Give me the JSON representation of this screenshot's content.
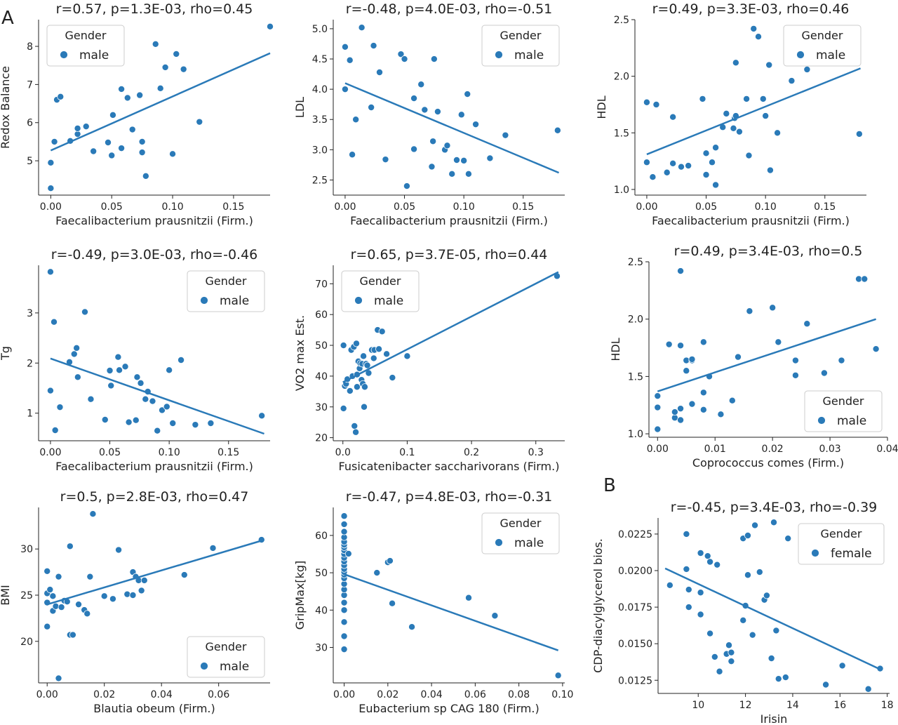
{
  "panel_labels": [
    "A",
    "B"
  ],
  "legend_title": "Gender",
  "chart_data": [
    {
      "type": "scatter",
      "title": "r=0.57, p=1.3E-03, rho=0.45",
      "xlabel": "Faecalibacterium prausnitzii (Firm.)",
      "ylabel": "Redox Balance",
      "xlim": [
        -0.01,
        0.18
      ],
      "ylim": [
        4.1,
        8.7
      ],
      "xticks": [
        "0.00",
        "0.05",
        "0.10",
        "0.15"
      ],
      "yticks": [
        "5",
        "6",
        "7",
        "8"
      ],
      "legend": "top-left",
      "legend_entry": "male",
      "fit": [
        [
          0.0,
          5.27
        ],
        [
          0.18,
          7.82
        ]
      ],
      "x": [
        0.0,
        0.0,
        0.003,
        0.005,
        0.008,
        0.016,
        0.022,
        0.022,
        0.029,
        0.035,
        0.047,
        0.051,
        0.05,
        0.058,
        0.058,
        0.063,
        0.067,
        0.073,
        0.075,
        0.075,
        0.078,
        0.086,
        0.09,
        0.094,
        0.1,
        0.103,
        0.109,
        0.122,
        0.18
      ],
      "y": [
        4.28,
        4.95,
        5.5,
        6.6,
        6.68,
        5.52,
        5.7,
        5.85,
        5.9,
        5.25,
        5.48,
        6.2,
        5.14,
        5.33,
        6.88,
        6.65,
        5.82,
        6.72,
        5.5,
        5.22,
        4.6,
        8.06,
        6.9,
        7.45,
        5.18,
        7.8,
        7.4,
        6.02,
        8.52
      ]
    },
    {
      "type": "scatter",
      "title": "r=-0.48, p=4.0E-03, rho=-0.51",
      "xlabel": "Faecalibacterium prausnitzii (Firm.)",
      "ylabel": "LDL",
      "xlim": [
        -0.01,
        0.185
      ],
      "ylim": [
        2.25,
        5.15
      ],
      "xticks": [
        "0.00",
        "0.05",
        "0.10",
        "0.15"
      ],
      "yticks": [
        "2.5",
        "3.0",
        "3.5",
        "4.0",
        "4.5",
        "5.0"
      ],
      "legend": "top-right",
      "legend_entry": "male",
      "fit": [
        [
          0.0,
          4.1
        ],
        [
          0.18,
          2.62
        ]
      ],
      "x": [
        0.0,
        0.0,
        0.004,
        0.006,
        0.009,
        0.014,
        0.022,
        0.024,
        0.029,
        0.034,
        0.047,
        0.05,
        0.052,
        0.058,
        0.058,
        0.064,
        0.067,
        0.073,
        0.074,
        0.075,
        0.078,
        0.084,
        0.086,
        0.09,
        0.094,
        0.098,
        0.1,
        0.103,
        0.104,
        0.11,
        0.122,
        0.135,
        0.179
      ],
      "y": [
        4.7,
        4.0,
        4.48,
        2.92,
        3.5,
        5.02,
        3.7,
        4.72,
        4.28,
        2.84,
        4.58,
        4.5,
        2.4,
        3.01,
        3.85,
        4.08,
        3.66,
        2.72,
        3.14,
        4.5,
        3.63,
        3.0,
        3.07,
        2.6,
        2.83,
        3.58,
        2.82,
        3.92,
        2.6,
        3.42,
        2.86,
        3.24,
        3.32
      ]
    },
    {
      "type": "scatter",
      "title": "r=0.49, p=3.3E-03, rho=0.46",
      "xlabel": "Faecalibacterium prausnitzii (Firm.)",
      "ylabel": "HDL",
      "xlim": [
        -0.01,
        0.185
      ],
      "ylim": [
        0.95,
        2.5
      ],
      "xticks": [
        "0.00",
        "0.05",
        "0.10",
        "0.15"
      ],
      "yticks": [
        "1.0",
        "1.5",
        "2.0",
        "2.5"
      ],
      "legend": "top-right",
      "legend_entry": "male",
      "fit": [
        [
          0.0,
          1.31
        ],
        [
          0.18,
          2.07
        ]
      ],
      "x": [
        0.0,
        0.0,
        0.005,
        0.008,
        0.017,
        0.022,
        0.022,
        0.022,
        0.029,
        0.035,
        0.047,
        0.05,
        0.05,
        0.055,
        0.058,
        0.058,
        0.064,
        0.067,
        0.073,
        0.074,
        0.075,
        0.075,
        0.078,
        0.084,
        0.086,
        0.09,
        0.094,
        0.098,
        0.1,
        0.103,
        0.104,
        0.11,
        0.122,
        0.135,
        0.179
      ],
      "y": [
        1.24,
        1.77,
        1.11,
        1.75,
        1.15,
        1.64,
        1.64,
        1.23,
        1.2,
        1.21,
        1.8,
        1.32,
        1.13,
        1.24,
        1.04,
        1.37,
        1.55,
        1.67,
        1.54,
        1.63,
        1.65,
        2.12,
        1.51,
        1.8,
        1.3,
        2.42,
        2.35,
        1.8,
        1.65,
        2.1,
        1.17,
        1.5,
        1.96,
        2.06,
        1.49
      ]
    },
    {
      "type": "scatter",
      "title": "r=-0.49, p=3.0E-03, rho=-0.46",
      "xlabel": "Faecalibacterium prausnitzii (Firm.)",
      "ylabel": "Tg",
      "xlim": [
        -0.01,
        0.185
      ],
      "ylim": [
        0.45,
        3.95
      ],
      "xticks": [
        "0.00",
        "0.05",
        "0.10",
        "0.15"
      ],
      "yticks": [
        "1",
        "2",
        "3"
      ],
      "legend": "top-right",
      "legend_entry": "male",
      "fit": [
        [
          0.0,
          2.09
        ],
        [
          0.18,
          0.59
        ]
      ],
      "x": [
        0.0,
        0.0,
        0.003,
        0.004,
        0.008,
        0.016,
        0.02,
        0.022,
        0.023,
        0.029,
        0.034,
        0.046,
        0.05,
        0.051,
        0.057,
        0.058,
        0.063,
        0.066,
        0.072,
        0.073,
        0.076,
        0.08,
        0.082,
        0.086,
        0.09,
        0.094,
        0.098,
        0.1,
        0.103,
        0.11,
        0.122,
        0.135,
        0.178
      ],
      "y": [
        3.82,
        1.45,
        2.82,
        0.66,
        1.12,
        2.02,
        2.18,
        2.3,
        1.72,
        3.02,
        1.28,
        0.87,
        1.85,
        1.55,
        2.12,
        1.86,
        1.93,
        0.82,
        0.86,
        1.72,
        1.6,
        1.28,
        1.43,
        1.24,
        0.65,
        1.06,
        1.13,
        1.86,
        0.8,
        2.06,
        0.77,
        0.8,
        0.95
      ]
    },
    {
      "type": "scatter",
      "title": "r=0.65, p=3.7E-05, rho=0.44",
      "xlabel": "Fusicatenibacter saccharivorans (Firm.)",
      "ylabel": "VO2 max Est.",
      "xlim": [
        -0.015,
        0.345
      ],
      "ylim": [
        19,
        76
      ],
      "xticks": [
        "0.0",
        "0.1",
        "0.2",
        "0.3"
      ],
      "yticks": [
        "20",
        "30",
        "40",
        "50",
        "60",
        "70"
      ],
      "legend": "top-left",
      "legend_entry": "male",
      "fit": [
        [
          0.0,
          38.0
        ],
        [
          0.335,
          73.8
        ]
      ],
      "x": [
        0.001,
        0.001,
        0.003,
        0.005,
        0.007,
        0.011,
        0.013,
        0.015,
        0.015,
        0.017,
        0.018,
        0.02,
        0.021,
        0.022,
        0.022,
        0.024,
        0.026,
        0.027,
        0.029,
        0.03,
        0.031,
        0.032,
        0.033,
        0.034,
        0.036,
        0.038,
        0.04,
        0.045,
        0.048,
        0.049,
        0.054,
        0.056,
        0.061,
        0.068,
        0.077,
        0.1,
        0.333
      ],
      "y": [
        29.5,
        50.0,
        36.8,
        37.5,
        39.0,
        35.2,
        48.5,
        40.0,
        40.0,
        49.5,
        23.8,
        21.8,
        50.6,
        40.5,
        36.5,
        44.8,
        42.5,
        44.2,
        38.8,
        44.0,
        37.5,
        46.5,
        30.0,
        36.5,
        44.0,
        43.5,
        41.0,
        48.5,
        45.8,
        48.5,
        55.0,
        48.8,
        54.5,
        47.2,
        39.5,
        46.5,
        72.5
      ]
    },
    {
      "type": "scatter",
      "title": "r=0.49, p=3.4E-03, rho=0.5",
      "xlabel": "Coprococcus comes (Firm.)",
      "ylabel": "HDL",
      "xlim": [
        -0.0015,
        0.04
      ],
      "ylim": [
        0.97,
        2.5
      ],
      "xticks": [
        "0.00",
        "0.01",
        "0.02",
        "0.03",
        "0.04"
      ],
      "yticks": [
        "1.0",
        "1.5",
        "2.0",
        "2.5"
      ],
      "legend": "bottom-right",
      "legend_entry": "male",
      "fit": [
        [
          0.0,
          1.37
        ],
        [
          0.038,
          2.0
        ]
      ],
      "x": [
        0.0,
        0.0,
        0.0,
        0.0,
        0.002,
        0.003,
        0.003,
        0.004,
        0.004,
        0.004,
        0.004,
        0.005,
        0.005,
        0.006,
        0.006,
        0.006,
        0.008,
        0.008,
        0.008,
        0.009,
        0.009,
        0.011,
        0.013,
        0.014,
        0.016,
        0.02,
        0.021,
        0.024,
        0.024,
        0.026,
        0.029,
        0.032,
        0.035,
        0.036,
        0.038
      ],
      "y": [
        1.04,
        1.23,
        1.33,
        1.33,
        1.78,
        1.14,
        1.19,
        1.12,
        1.22,
        1.77,
        2.42,
        1.64,
        1.55,
        1.64,
        1.65,
        1.26,
        1.8,
        1.36,
        1.21,
        1.5,
        1.5,
        1.17,
        1.29,
        1.67,
        2.07,
        2.1,
        1.8,
        1.51,
        1.64,
        1.96,
        1.53,
        1.64,
        2.35,
        2.35,
        1.74
      ]
    },
    {
      "type": "scatter",
      "title": "r=0.5, p=2.8E-03, rho=0.47",
      "xlabel": "Blautia obeum (Firm.)",
      "ylabel": "BMI",
      "xlim": [
        -0.003,
        0.078
      ],
      "ylim": [
        15.5,
        34.5
      ],
      "xticks": [
        "0.00",
        "0.02",
        "0.04",
        "0.06"
      ],
      "yticks": [
        "20",
        "25",
        "30"
      ],
      "legend": "bottom-right",
      "legend_entry": "male",
      "fit": [
        [
          0.0,
          24.0
        ],
        [
          0.075,
          30.9
        ]
      ],
      "x": [
        0.0,
        0.0,
        0.0,
        0.0,
        0.001,
        0.002,
        0.002,
        0.003,
        0.004,
        0.004,
        0.005,
        0.006,
        0.007,
        0.008,
        0.008,
        0.009,
        0.011,
        0.013,
        0.014,
        0.015,
        0.016,
        0.02,
        0.023,
        0.025,
        0.028,
        0.03,
        0.03,
        0.031,
        0.032,
        0.033,
        0.034,
        0.048,
        0.058,
        0.075
      ],
      "y": [
        21.6,
        24.2,
        25.2,
        27.6,
        25.6,
        23.3,
        24.9,
        23.8,
        27.0,
        16.0,
        23.7,
        24.4,
        24.3,
        30.3,
        20.7,
        20.7,
        24.0,
        23.4,
        23.0,
        27.0,
        33.8,
        24.9,
        24.6,
        29.9,
        25.1,
        25.0,
        27.5,
        27.0,
        26.6,
        25.5,
        26.6,
        27.2,
        30.1,
        31.0
      ]
    },
    {
      "type": "scatter",
      "title": "r=-0.47, p=4.8E-03, rho=-0.31",
      "xlabel": "Eubacterium sp CAG 180 (Firm.)",
      "ylabel": "GripMax[kg]",
      "xlim": [
        -0.005,
        0.101
      ],
      "ylim": [
        20.5,
        67.5
      ],
      "xticks": [
        "0.00",
        "0.02",
        "0.04",
        "0.06",
        "0.08",
        "0.10"
      ],
      "yticks": [
        "30",
        "40",
        "50",
        "60"
      ],
      "legend": "top-right",
      "legend_entry": "male",
      "fit": [
        [
          0.0,
          49.6
        ],
        [
          0.098,
          29.2
        ]
      ],
      "x": [
        0.0,
        0.0,
        0.0,
        0.0,
        0.0,
        0.0,
        0.0,
        0.0,
        0.0,
        0.0,
        0.0,
        0.0,
        0.0,
        0.0,
        0.0,
        0.0,
        0.0,
        0.0,
        0.0,
        0.0,
        0.0,
        0.0,
        0.0,
        0.0,
        0.002,
        0.015,
        0.02,
        0.021,
        0.022,
        0.031,
        0.057,
        0.069,
        0.098
      ],
      "y": [
        29.5,
        33.0,
        36.8,
        40.0,
        42.0,
        44.0,
        45.5,
        47.0,
        48.5,
        49.5,
        50.2,
        51.0,
        52.0,
        53.0,
        54.0,
        55.0,
        56.0,
        56.8,
        57.5,
        58.3,
        59.5,
        61.0,
        63.0,
        65.2,
        55.1,
        50.0,
        52.8,
        53.2,
        41.8,
        35.5,
        43.3,
        38.5,
        22.5
      ]
    },
    {
      "type": "scatter",
      "title": "r=-0.45, p=3.4E-03, rho=-0.39",
      "xlabel": "Irisin",
      "ylabel": "CDP-diacylglycerol bios.",
      "xlim": [
        8.3,
        18.1
      ],
      "ylim": [
        0.0116,
        0.0236
      ],
      "xticks": [
        "10",
        "12",
        "14",
        "16",
        "18"
      ],
      "yticks": [
        "0.0125",
        "0.0150",
        "0.0175",
        "0.0200",
        "0.0225"
      ],
      "legend": "top-right",
      "legend_entry": "female",
      "fit": [
        [
          8.6,
          0.02015
        ],
        [
          17.7,
          0.01325
        ]
      ],
      "x": [
        8.8,
        9.5,
        9.5,
        9.6,
        9.6,
        10.1,
        10.1,
        10.1,
        10.4,
        10.5,
        10.5,
        10.7,
        10.8,
        10.9,
        11.2,
        11.3,
        11.4,
        11.4,
        11.9,
        11.9,
        12.0,
        12.1,
        12.1,
        12.3,
        12.4,
        12.6,
        12.8,
        12.9,
        13.1,
        13.2,
        13.3,
        13.4,
        13.7,
        13.8,
        15.4,
        16.1,
        17.2,
        17.7
      ],
      "y": [
        0.019,
        0.0225,
        0.0201,
        0.0175,
        0.0187,
        0.0212,
        0.017,
        0.0185,
        0.021,
        0.0206,
        0.0157,
        0.0141,
        0.0204,
        0.0131,
        0.0143,
        0.0149,
        0.0138,
        0.0144,
        0.0222,
        0.0166,
        0.0176,
        0.0197,
        0.0224,
        0.0156,
        0.0231,
        0.0199,
        0.018,
        0.0183,
        0.014,
        0.0233,
        0.0159,
        0.0126,
        0.0127,
        0.0222,
        0.0122,
        0.0135,
        0.0119,
        0.0133
      ]
    }
  ],
  "colors": {
    "marker": "#2a7ab8",
    "marker_edge": "#ffffff",
    "line": "#2a7ab8",
    "axis": "#222222",
    "legend_border": "#cccccc"
  }
}
